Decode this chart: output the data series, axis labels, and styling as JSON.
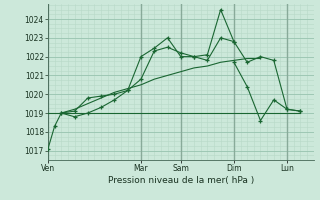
{
  "background_color": "#cce8da",
  "grid_color_minor": "#b8d8c8",
  "grid_color_major": "#99c4b0",
  "line_color": "#1a6632",
  "title": "Pression niveau de la mer( hPa )",
  "ylim": [
    1016.5,
    1024.8
  ],
  "yticks": [
    1017,
    1018,
    1019,
    1020,
    1021,
    1022,
    1023,
    1024
  ],
  "day_labels": [
    "Ven",
    "Mar",
    "Sam",
    "Dim",
    "Lun"
  ],
  "day_positions": [
    0,
    7,
    10,
    14,
    18
  ],
  "xlim": [
    0,
    20
  ],
  "series1_x": [
    0,
    0.5,
    1,
    2,
    3,
    4,
    5,
    6,
    7,
    8,
    9,
    10,
    11,
    12,
    13,
    14,
    15,
    16,
    17,
    18,
    19
  ],
  "series1_y": [
    1017.1,
    1018.3,
    1019.0,
    1019.1,
    1019.8,
    1019.9,
    1020.0,
    1020.2,
    1022.0,
    1022.45,
    1023.0,
    1022.0,
    1022.0,
    1022.1,
    1024.5,
    1022.8,
    1021.7,
    1022.0,
    1021.8,
    1019.2,
    1019.1
  ],
  "series2_x": [
    0,
    1,
    2,
    3,
    4,
    5,
    6,
    7,
    8,
    9,
    10,
    11,
    12,
    13,
    14,
    15,
    16,
    17,
    18,
    19
  ],
  "series2_y": [
    1019.0,
    1019.0,
    1019.0,
    1019.0,
    1019.0,
    1019.0,
    1019.0,
    1019.0,
    1019.0,
    1019.0,
    1019.0,
    1019.0,
    1019.0,
    1019.0,
    1019.0,
    1019.0,
    1019.0,
    1019.0,
    1019.0,
    1019.0
  ],
  "series3_x": [
    1,
    2,
    3,
    4,
    5,
    6,
    7,
    8,
    9,
    10,
    11,
    12,
    13,
    14,
    15,
    16
  ],
  "series3_y": [
    1019.0,
    1019.2,
    1019.5,
    1019.8,
    1020.1,
    1020.3,
    1020.5,
    1020.8,
    1021.0,
    1021.2,
    1021.4,
    1021.5,
    1021.7,
    1021.8,
    1021.9,
    1021.9
  ],
  "series4_x": [
    1,
    2,
    3,
    4,
    5,
    6,
    7,
    8,
    9,
    10,
    11,
    12,
    13,
    14
  ],
  "series4_y": [
    1019.0,
    1018.8,
    1019.0,
    1019.3,
    1019.7,
    1020.2,
    1020.8,
    1022.3,
    1022.5,
    1022.2,
    1022.0,
    1021.8,
    1023.0,
    1022.8
  ],
  "series5_x": [
    14,
    15,
    16,
    17,
    18,
    19
  ],
  "series5_y": [
    1021.7,
    1020.4,
    1018.6,
    1019.7,
    1019.2,
    1019.1
  ]
}
